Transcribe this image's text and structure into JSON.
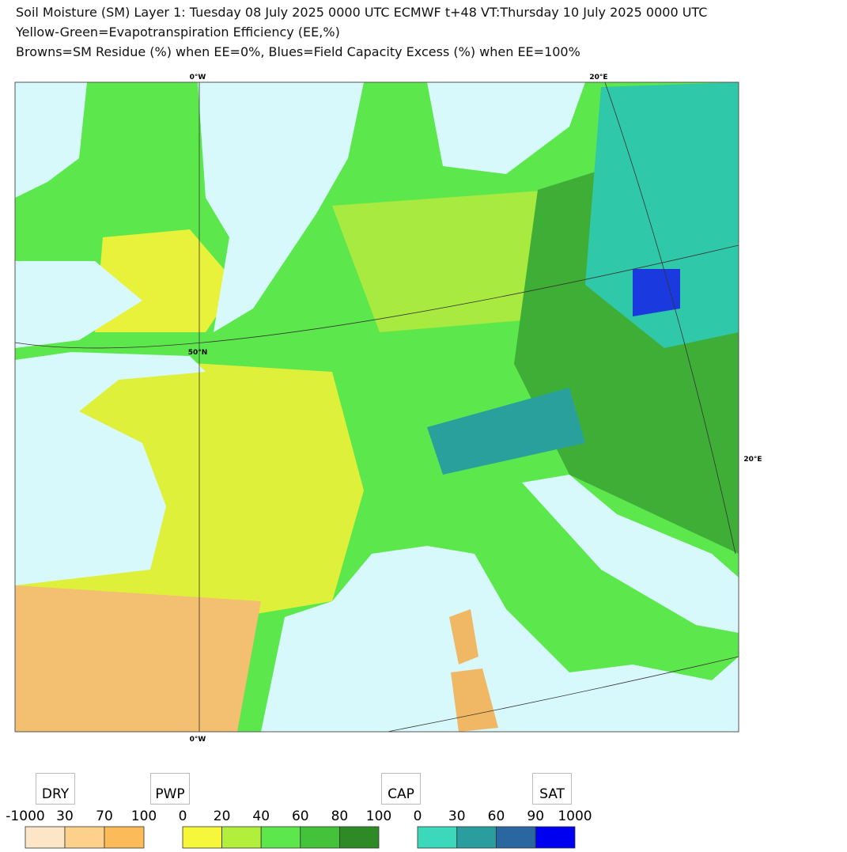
{
  "header": {
    "lines": [
      "Soil Moisture (SM) Layer 1: Tuesday 08 July 2025 0000 UTC  ECMWF  t+48  VT:Thursday 10 July 2025 0000 UTC",
      "Yellow-Green=Evapotranspiration Efficiency (EE,%)",
      "Browns=SM Residue (%) when EE=0%, Blues=Field Capacity Excess (%) when EE=100%"
    ]
  },
  "map": {
    "graticule_labels": [
      "0°W",
      "20°E",
      "50°N",
      "20°E",
      "0°W"
    ]
  },
  "legend": {
    "markers": [
      "DRY",
      "PWP",
      "CAP",
      "SAT"
    ],
    "scales": [
      {
        "ticks": [
          -1000,
          30,
          70,
          100
        ],
        "colors": [
          "#fde6c8",
          "#fdd08c",
          "#fbbb58"
        ]
      },
      {
        "ticks": [
          0,
          20,
          40,
          60,
          80,
          100
        ],
        "colors": [
          "#f6f63a",
          "#b2ee3c",
          "#5ce84c",
          "#44c23a",
          "#2e8a24"
        ]
      },
      {
        "ticks": [
          0,
          30,
          60,
          90,
          1000
        ],
        "colors": [
          "#3cd8bc",
          "#2a9e9e",
          "#2a66a0",
          "#0000f0"
        ]
      }
    ]
  }
}
